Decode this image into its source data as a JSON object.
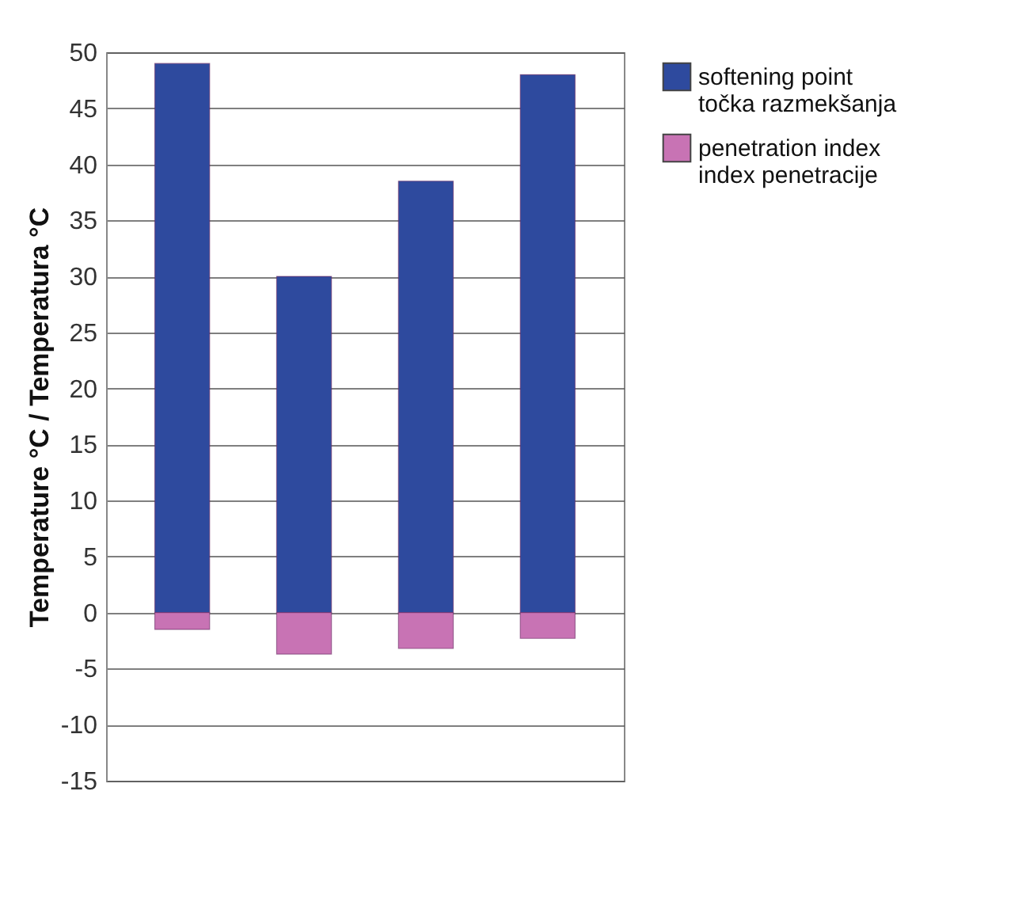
{
  "chart_data": {
    "type": "bar",
    "ylabel": "Temperature  °C / Temperatura  °C",
    "categories": [
      null,
      null,
      null,
      null
    ],
    "stacked": true,
    "series": [
      {
        "name": "softening point\ntočka razmekšanja",
        "color": "#2e4a9e",
        "values": [
          49,
          30,
          38.5,
          48
        ]
      },
      {
        "name": "penetration index\nindex penetracije",
        "color": "#c873b4",
        "values": [
          -1.5,
          -3.7,
          -3.2,
          -2.3
        ]
      }
    ],
    "ylim": [
      -15,
      50
    ],
    "yticks": [
      -15,
      -10,
      -5,
      0,
      5,
      10,
      15,
      20,
      25,
      30,
      35,
      40,
      45,
      50
    ],
    "grid": true,
    "legend": "right"
  }
}
